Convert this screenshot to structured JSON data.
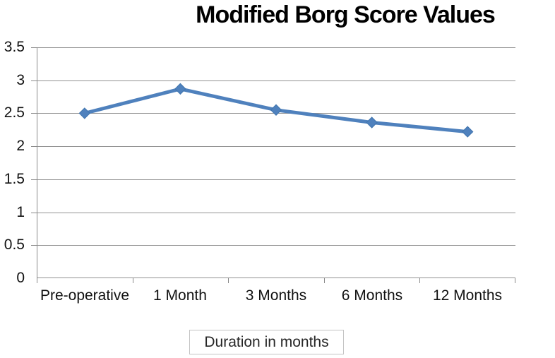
{
  "title": "Modified Borg Score Values",
  "x_axis_box_label": "Duration in months",
  "colors": {
    "series_line": "#4F81BD",
    "marker_fill": "#4F81BD",
    "marker_edge": "#3F74AD",
    "gridline": "#929292",
    "axis": "#8A8A8A",
    "title_text": "#000000",
    "tick_text": "#111111",
    "box_border": "#C3C3C3"
  },
  "chart_data": {
    "type": "line",
    "title": "Modified Borg Score Values",
    "xlabel": "Duration in months",
    "ylabel": "",
    "categories": [
      "Pre-operative",
      "1 Month",
      "3 Months",
      "6 Months",
      "12 Months"
    ],
    "series": [
      {
        "values": [
          2.5,
          2.87,
          2.55,
          2.36,
          2.22
        ]
      }
    ],
    "ylim": [
      0,
      3.5
    ],
    "ytick_interval": 0.5,
    "ytick_labels": [
      "3.5",
      "3",
      "2.5",
      "2",
      "1.5",
      "1",
      "0.5",
      "0"
    ],
    "grid": true,
    "legend": "none",
    "marker": "diamond",
    "line_color": "#4F81BD",
    "line_width": 5
  }
}
